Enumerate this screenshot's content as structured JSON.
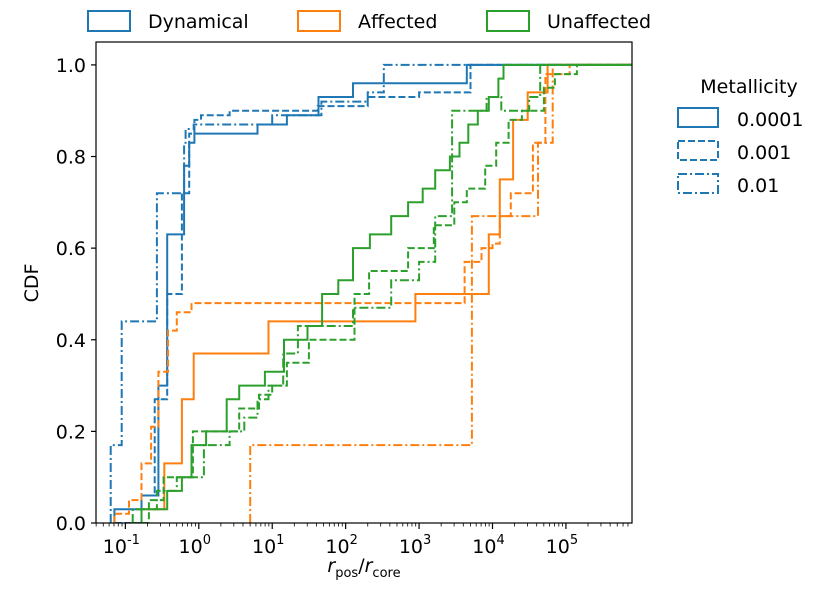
{
  "chart_data": {
    "type": "line",
    "subtype": "step-cdf",
    "xscale": "log",
    "xlim_log10": [
      -1.4,
      5.9
    ],
    "ylim": [
      0,
      1.05
    ],
    "xlabel": "r_pos/r_core",
    "xlabel_main": "r",
    "xlabel_sub1": "pos",
    "xlabel_sep": "/",
    "xlabel_sub2": "core",
    "ylabel": "CDF",
    "x_ticks": [
      {
        "exp": -1,
        "base": "10",
        "label": "-1"
      },
      {
        "exp": 0,
        "base": "10",
        "label": "0"
      },
      {
        "exp": 1,
        "base": "10",
        "label": "1"
      },
      {
        "exp": 2,
        "base": "10",
        "label": "2"
      },
      {
        "exp": 3,
        "base": "10",
        "label": "3"
      },
      {
        "exp": 4,
        "base": "10",
        "label": "4"
      },
      {
        "exp": 5,
        "base": "10",
        "label": "5"
      }
    ],
    "y_ticks": [
      {
        "value": 0,
        "label": "0.0"
      },
      {
        "value": 0.2,
        "label": "0.2"
      },
      {
        "value": 0.4,
        "label": "0.4"
      },
      {
        "value": 0.6,
        "label": "0.6"
      },
      {
        "value": 0.8,
        "label": "0.8"
      },
      {
        "value": 1.0,
        "label": "1.0"
      }
    ],
    "legend_top": {
      "placement": "top, above plot",
      "entries": [
        {
          "label": "Dynamical",
          "color": "#1f77b4"
        },
        {
          "label": "Affected",
          "color": "#ff7f0e"
        },
        {
          "label": "Unaffected",
          "color": "#2ca02c"
        }
      ]
    },
    "legend_right": {
      "placement": "right of plot",
      "title": "Metallicity",
      "entries": [
        {
          "label": "0.0001",
          "style": "solid"
        },
        {
          "label": "0.001",
          "style": "dashed"
        },
        {
          "label": "0.01",
          "style": "dashdot"
        }
      ]
    },
    "series": [
      {
        "name": "Dynamical, Z=0.0001",
        "group": "Dynamical",
        "metallicity": "0.0001",
        "color": "#1f77b4",
        "style": "solid",
        "log10_x": [
          -1.15,
          -0.78,
          -0.55,
          -0.43,
          -0.2,
          -0.13,
          -0.06,
          0.3,
          0.8,
          1.2,
          1.63,
          2.1,
          3.65,
          6.0
        ],
        "y": [
          0.03,
          0.06,
          0.3,
          0.63,
          0.78,
          0.83,
          0.85,
          0.85,
          0.87,
          0.89,
          0.93,
          0.96,
          1.0,
          1.0
        ]
      },
      {
        "name": "Dynamical, Z=0.001",
        "group": "Dynamical",
        "metallicity": "0.001",
        "color": "#1f77b4",
        "style": "dashed",
        "log10_x": [
          -1.15,
          -0.78,
          -0.6,
          -0.43,
          -0.23,
          -0.13,
          -0.06,
          0.03,
          0.42,
          1.62,
          2.3,
          3.0,
          3.7,
          6.0
        ],
        "y": [
          0.0,
          0.06,
          0.27,
          0.5,
          0.72,
          0.85,
          0.88,
          0.89,
          0.9,
          0.91,
          0.93,
          0.94,
          1.0,
          1.0
        ]
      },
      {
        "name": "Dynamical, Z=0.01",
        "group": "Dynamical",
        "metallicity": "0.01",
        "color": "#1f77b4",
        "style": "dashdot",
        "log10_x": [
          -1.2,
          -1.05,
          -0.92,
          -0.57,
          -0.42,
          -0.2,
          -0.18,
          -0.07,
          1.0,
          1.67,
          2.3,
          2.52,
          3.8,
          6.0
        ],
        "y": [
          0.17,
          0.44,
          0.44,
          0.72,
          0.72,
          0.83,
          0.86,
          0.87,
          0.89,
          0.92,
          0.94,
          1.0,
          1.0,
          1.0
        ]
      },
      {
        "name": "Affected, Z=0.0001",
        "group": "Affected",
        "metallicity": "0.0001",
        "color": "#ff7f0e",
        "style": "solid",
        "log10_x": [
          -0.78,
          -0.47,
          -0.23,
          -0.07,
          0.6,
          0.95,
          1.5,
          2.95,
          3.58,
          3.95,
          4.1,
          4.28,
          4.48,
          4.75,
          6.0
        ],
        "y": [
          0.03,
          0.13,
          0.27,
          0.37,
          0.37,
          0.44,
          0.44,
          0.5,
          0.5,
          0.63,
          0.75,
          0.88,
          0.94,
          1.0,
          1.0
        ]
      },
      {
        "name": "Affected, Z=0.001",
        "group": "Affected",
        "metallicity": "0.001",
        "color": "#ff7f0e",
        "style": "dashed",
        "log10_x": [
          -1.15,
          -0.95,
          -0.78,
          -0.65,
          -0.55,
          -0.42,
          -0.3,
          -0.1,
          3.35,
          3.62,
          3.85,
          4.0,
          4.1,
          4.25,
          4.55,
          4.72,
          5.05,
          6.0
        ],
        "y": [
          0.02,
          0.05,
          0.13,
          0.21,
          0.33,
          0.42,
          0.46,
          0.48,
          0.48,
          0.57,
          0.6,
          0.61,
          0.67,
          0.72,
          0.83,
          0.98,
          1.0,
          1.0
        ]
      },
      {
        "name": "Affected, Z=0.01",
        "group": "Affected",
        "metallicity": "0.01",
        "color": "#ff7f0e",
        "style": "dashdot",
        "log10_x": [
          0.7,
          3.43,
          3.72,
          4.05,
          4.3,
          4.62,
          4.82,
          6.0
        ],
        "y": [
          0.17,
          0.17,
          0.67,
          0.67,
          0.67,
          0.83,
          1.0,
          1.0
        ]
      },
      {
        "name": "Unaffected, Z=0.0001",
        "group": "Unaffected",
        "metallicity": "0.0001",
        "color": "#2ca02c",
        "style": "solid",
        "log10_x": [
          -0.78,
          -0.43,
          -0.23,
          -0.1,
          0.1,
          0.38,
          0.55,
          0.9,
          1.16,
          1.48,
          1.68,
          1.9,
          2.1,
          2.33,
          2.62,
          2.85,
          3.05,
          3.22,
          3.42,
          3.55,
          3.67,
          3.8,
          3.95,
          4.08,
          4.15,
          6.0
        ],
        "y": [
          0.03,
          0.07,
          0.1,
          0.17,
          0.2,
          0.27,
          0.3,
          0.33,
          0.4,
          0.43,
          0.5,
          0.53,
          0.6,
          0.63,
          0.67,
          0.7,
          0.73,
          0.77,
          0.8,
          0.83,
          0.87,
          0.9,
          0.93,
          0.97,
          1.0,
          1.0
        ]
      },
      {
        "name": "Unaffected, Z=0.001",
        "group": "Unaffected",
        "metallicity": "0.001",
        "color": "#2ca02c",
        "style": "dashed",
        "log10_x": [
          -0.9,
          -0.68,
          -0.48,
          -0.08,
          0.55,
          0.82,
          1.0,
          1.2,
          1.5,
          2.12,
          2.32,
          2.85,
          3.2,
          3.48,
          3.65,
          3.9,
          4.05,
          4.22,
          4.4,
          4.7,
          4.85,
          5.15,
          6.0
        ],
        "y": [
          0.0,
          0.05,
          0.1,
          0.2,
          0.25,
          0.28,
          0.3,
          0.35,
          0.4,
          0.5,
          0.55,
          0.6,
          0.65,
          0.7,
          0.73,
          0.78,
          0.83,
          0.88,
          0.9,
          0.95,
          0.98,
          1.0,
          1.0
        ]
      },
      {
        "name": "Unaffected, Z=0.01",
        "group": "Unaffected",
        "metallicity": "0.01",
        "color": "#2ca02c",
        "style": "dashdot",
        "log10_x": [
          -0.9,
          -0.57,
          -0.3,
          0.07,
          0.42,
          0.62,
          0.8,
          0.95,
          1.15,
          1.35,
          2.1,
          2.62,
          3.0,
          3.22,
          3.45,
          3.72,
          3.92,
          4.12,
          4.3,
          4.5,
          4.65,
          6.0
        ],
        "y": [
          0.03,
          0.07,
          0.1,
          0.17,
          0.2,
          0.23,
          0.27,
          0.3,
          0.37,
          0.43,
          0.47,
          0.53,
          0.57,
          0.67,
          0.9,
          0.9,
          0.93,
          0.9,
          0.9,
          0.93,
          1.0,
          1.0
        ]
      }
    ]
  }
}
